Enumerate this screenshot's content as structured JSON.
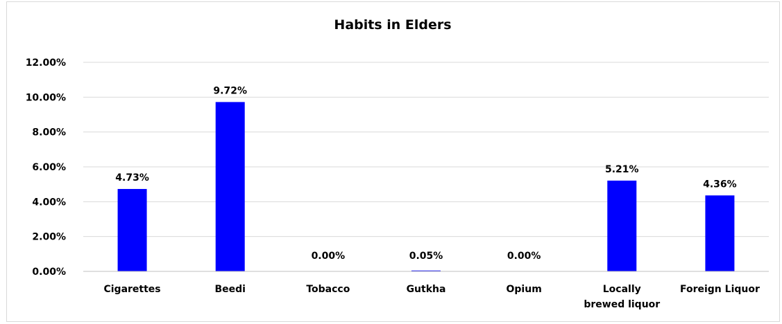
{
  "chart_data": {
    "type": "bar",
    "title": "Habits in Elders",
    "xlabel": "",
    "ylabel": "",
    "categories": [
      [
        "Cigarettes"
      ],
      [
        "Beedi"
      ],
      [
        "Tobacco"
      ],
      [
        "Gutkha"
      ],
      [
        "Opium"
      ],
      [
        "Locally",
        "brewed liquor"
      ],
      [
        "Foreign Liquor"
      ]
    ],
    "values": [
      4.73,
      9.72,
      0.0,
      0.05,
      0.0,
      5.21,
      4.36
    ],
    "value_labels": [
      "4.73%",
      "9.72%",
      "0.00%",
      "0.05%",
      "0.00%",
      "5.21%",
      "4.36%"
    ],
    "y_ticks": [
      0,
      2,
      4,
      6,
      8,
      10,
      12
    ],
    "y_tick_labels": [
      "0.00%",
      "2.00%",
      "4.00%",
      "6.00%",
      "8.00%",
      "10.00%",
      "12.00%"
    ],
    "ylim": [
      0,
      12
    ],
    "unit": "%",
    "grid": true,
    "legend": "none",
    "bar_color": "#0000ff",
    "gridline_color": "#d9d9d9"
  }
}
